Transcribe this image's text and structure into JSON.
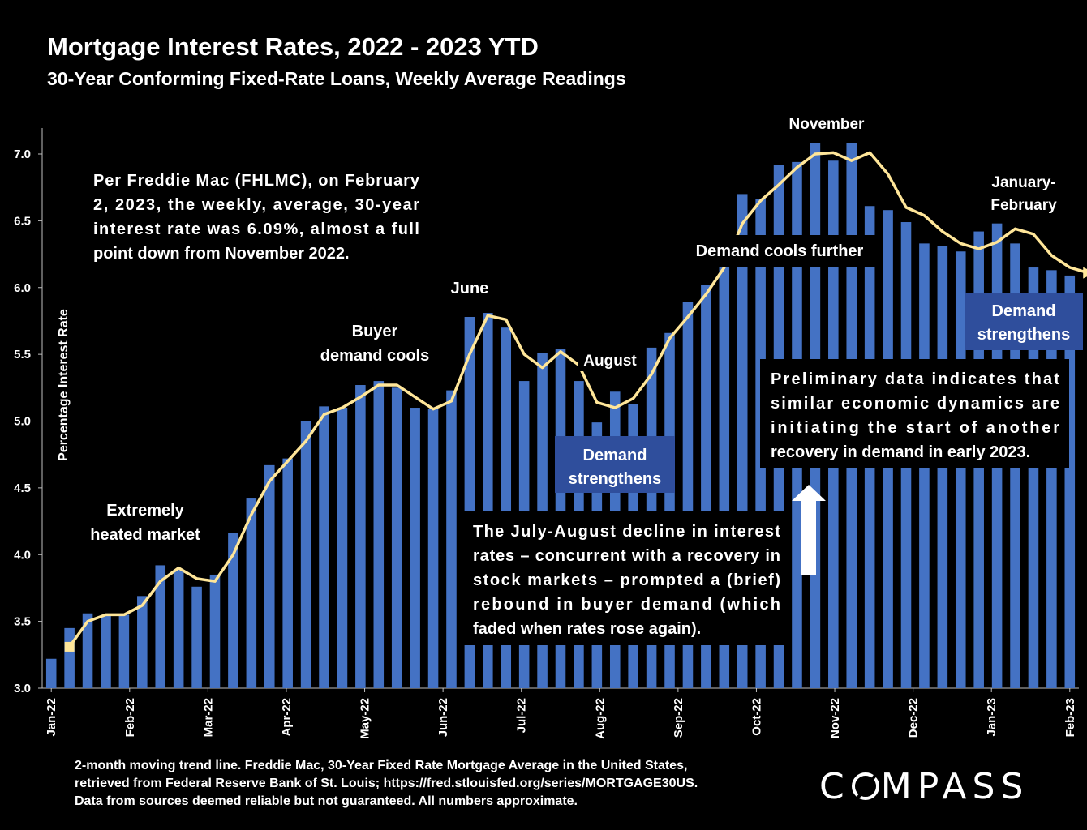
{
  "title": "Mortgage Interest Rates, 2022 - 2023 YTD",
  "subtitle": "30-Year Conforming Fixed-Rate Loans, Weekly Average Readings",
  "footer_lines": [
    "2-month moving trend line. Freddie Mac, 30-Year Fixed Rate Mortgage Average in the United States,",
    "retrieved from Federal Reserve Bank of St. Louis; https://fred.stlouisfed.org/series/MORTGAGE30US.",
    "Data from sources deemed reliable but not guaranteed. All numbers approximate."
  ],
  "logo": {
    "before": "C",
    "after": "MPASS"
  },
  "colors": {
    "bar": "#4472C4",
    "trend": "#FFE699",
    "label_box": "#2F4E9C",
    "background": "#000000"
  },
  "chart_data": {
    "type": "bar",
    "ylabel": "Percentage Interest Rate",
    "ylim": [
      3.0,
      7.2
    ],
    "yticks": [
      "3.0",
      "3.5",
      "4.0",
      "4.5",
      "5.0",
      "5.5",
      "6.0",
      "6.5",
      "7.0"
    ],
    "x_tick_labels": [
      "Jan-22",
      "Feb-22",
      "Mar-22",
      "Apr-22",
      "May-22",
      "Jun-22",
      "Jul-22",
      "Aug-22",
      "Sep-22",
      "Oct-22",
      "Nov-22",
      "Dec-22",
      "Jan-23",
      "Feb-23"
    ],
    "series": [
      {
        "type": "bar",
        "values": [
          3.22,
          3.45,
          3.56,
          3.55,
          3.55,
          3.69,
          3.92,
          3.89,
          3.76,
          3.85,
          4.16,
          4.42,
          4.67,
          4.72,
          5.0,
          5.11,
          5.1,
          5.27,
          5.3,
          5.25,
          5.1,
          5.09,
          5.23,
          5.78,
          5.81,
          5.7,
          5.3,
          5.51,
          5.54,
          5.3,
          4.99,
          5.22,
          5.13,
          5.55,
          5.66,
          5.89,
          6.02,
          6.29,
          6.7,
          6.66,
          6.92,
          6.94,
          7.08,
          6.95,
          7.08,
          6.61,
          6.58,
          6.49,
          6.33,
          6.31,
          6.27,
          6.42,
          6.48,
          6.33,
          6.15,
          6.13,
          6.09
        ]
      },
      {
        "type": "line",
        "values": [
          3.31,
          3.5,
          3.55,
          3.55,
          3.62,
          3.8,
          3.9,
          3.82,
          3.8,
          4.0,
          4.3,
          4.55,
          4.7,
          4.85,
          5.05,
          5.1,
          5.18,
          5.27,
          5.27,
          5.18,
          5.09,
          5.15,
          5.5,
          5.79,
          5.76,
          5.5,
          5.4,
          5.52,
          5.42,
          5.14,
          5.1,
          5.17,
          5.35,
          5.62,
          5.78,
          5.95,
          6.15,
          6.48,
          6.65,
          6.77,
          6.9,
          7.0,
          7.01,
          6.95,
          7.01,
          6.85,
          6.6,
          6.54,
          6.42,
          6.33,
          6.29,
          6.34,
          6.44,
          6.4,
          6.24,
          6.15,
          6.11
        ]
      }
    ],
    "annotations": {
      "extremely_heated": [
        "Extremely",
        "heated market"
      ],
      "buyer_cools": [
        "Buyer",
        "demand cools"
      ],
      "june": "June",
      "august": "August",
      "cools_further": "Demand cools further",
      "november": "November",
      "jan_feb": [
        "January-",
        "February"
      ],
      "strengthens_aug": [
        "Demand",
        "strengthens"
      ],
      "strengthens_jan": [
        "Demand",
        "strengthens"
      ],
      "freddie_note": [
        "Per Freddie Mac (FHLMC), on February",
        "2, 2023, the weekly, average, 30-year",
        "interest rate was 6.09%, almost a full",
        "point down from November 2022."
      ],
      "july_august_note": [
        "The July-August decline in interest",
        "rates – concurrent with a recovery in",
        "stock markets – prompted a (brief)",
        "rebound in buyer demand (which",
        "faded when rates rose again)."
      ],
      "preliminary_note": [
        "Preliminary data indicates that",
        "similar economic dynamics  are",
        "initiating the start of another",
        "recovery in demand in early 2023."
      ]
    }
  }
}
